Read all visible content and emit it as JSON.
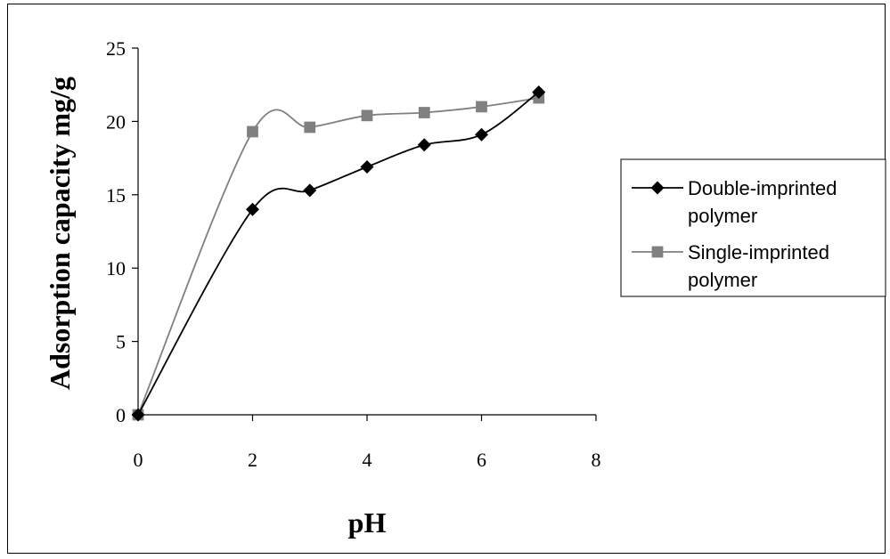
{
  "chart_data": {
    "type": "line",
    "title": "",
    "xlabel": "pH",
    "ylabel": "Adsorption capacity mg/g",
    "xlim": [
      0,
      8
    ],
    "ylim": [
      0,
      25
    ],
    "xticks": [
      0,
      2,
      4,
      6,
      8
    ],
    "yticks": [
      0,
      5,
      10,
      15,
      20,
      25
    ],
    "grid": false,
    "legend_position": "right",
    "smooth": true,
    "series": [
      {
        "name": "Double-imprinted polymer",
        "name_lines": [
          "Double-imprinted",
          "polymer"
        ],
        "marker": "diamond",
        "color": "#000000",
        "x": [
          0,
          2,
          3,
          4,
          5,
          6,
          7
        ],
        "y": [
          0,
          14.0,
          15.3,
          16.9,
          18.4,
          19.1,
          22.0
        ]
      },
      {
        "name": "Single-imprinted polymer",
        "name_lines": [
          "Single-imprinted",
          "polymer"
        ],
        "marker": "square",
        "color": "#808080",
        "x": [
          0,
          2,
          3,
          4,
          5,
          6,
          7
        ],
        "y": [
          0,
          19.3,
          19.6,
          20.4,
          20.6,
          21.0,
          21.6
        ]
      }
    ]
  }
}
